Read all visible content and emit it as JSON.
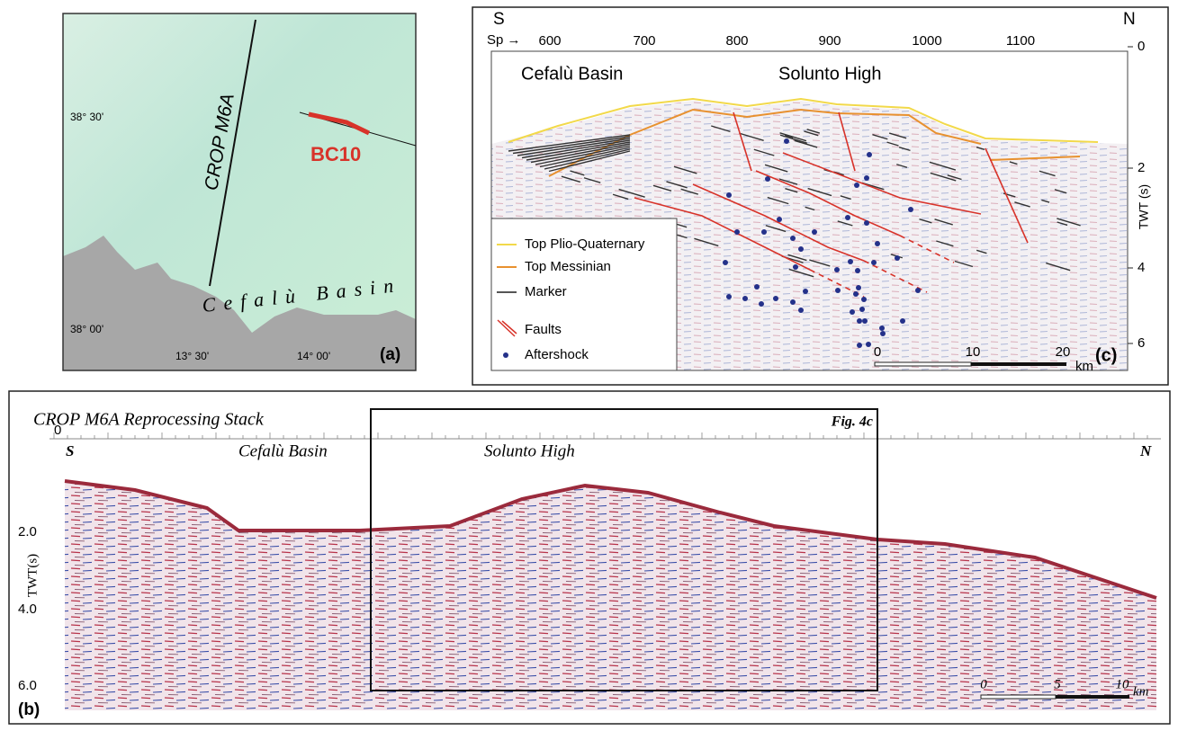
{
  "panel_a": {
    "label": "(a)",
    "line_label": "CROP M6A",
    "profile_label": "BC10",
    "basin_label": "Cefalù Basin",
    "lat_labels": [
      "38° 30'",
      "38° 00'"
    ],
    "lon_labels": [
      "13° 30'",
      "14° 00'"
    ]
  },
  "panel_c": {
    "label": "(c)",
    "south": "S",
    "north": "N",
    "sp_label": "Sp →",
    "shot_points": [
      "600",
      "700",
      "800",
      "900",
      "1000",
      "1100"
    ],
    "twt_ticks": [
      "0",
      "2",
      "4",
      "6"
    ],
    "twt_axis": "TWT (s)",
    "basin_label": "Cefalù Basin",
    "high_label": "Solunto High",
    "legend": [
      "Top Plio-Quaternary",
      "Top Messinian",
      "Marker",
      "Faults",
      "Aftershock"
    ],
    "scale": [
      "0",
      "10",
      "20"
    ],
    "scale_unit": "km"
  },
  "panel_b": {
    "title": "CROP M6A Reprocessing Stack",
    "box_label": "Fig. 4c",
    "label": "(b)",
    "south": "S",
    "north": "N",
    "basin_label": "Cefalù Basin",
    "high_label": "Solunto High",
    "twt_top": "0",
    "twt_ticks": [
      "2.0",
      "4.0",
      "6.0"
    ],
    "twt_axis": "TWT(s)",
    "scale": [
      "0",
      "5",
      "10"
    ],
    "scale_unit": "km"
  }
}
